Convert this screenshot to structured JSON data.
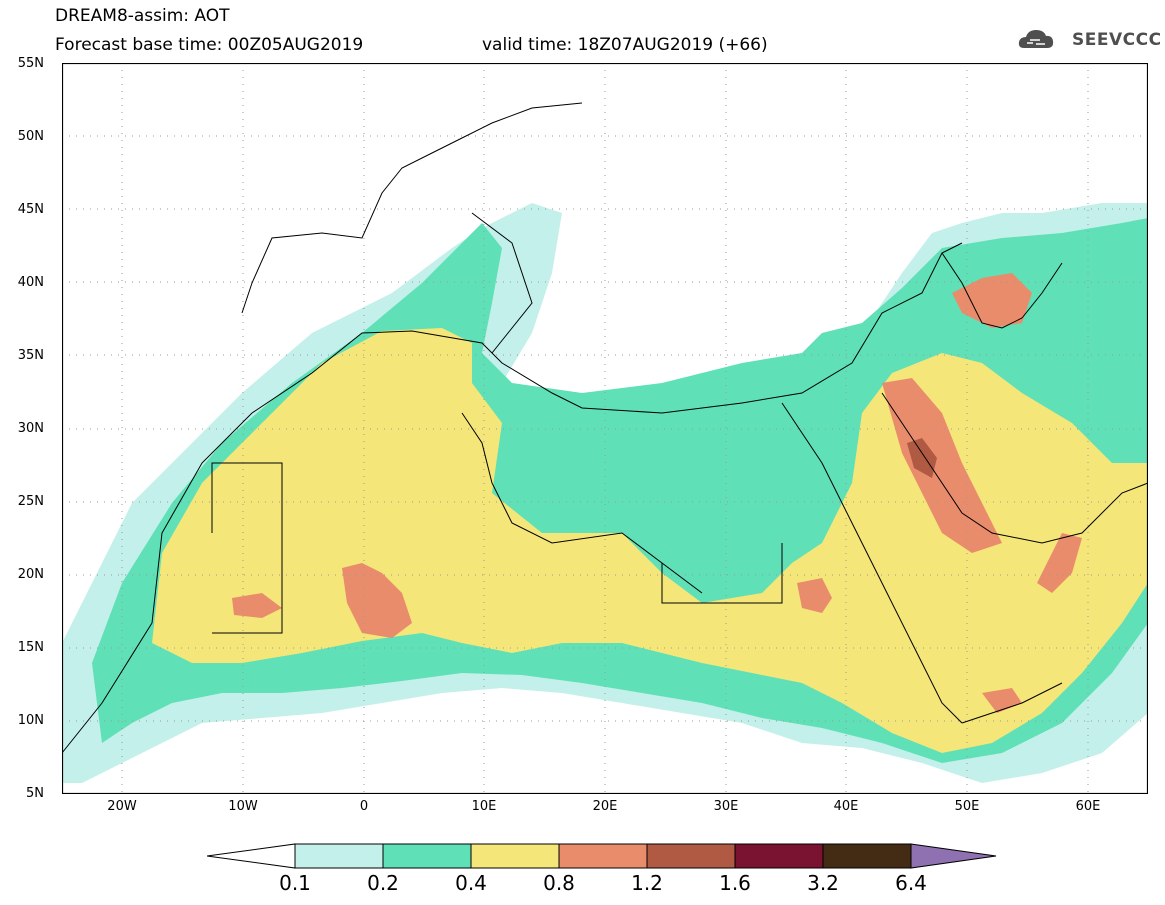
{
  "header": {
    "title_line1": "DREAM8-assim: AOT",
    "title_line2_left": "Forecast base time: 00Z05AUG2019",
    "title_line2_right": "valid time: 18Z07AUG2019 (+66)",
    "logo_text": "SEEVCCC",
    "logo_icon": "cloud-icon"
  },
  "map": {
    "extent": {
      "lon_min": -25,
      "lon_max": 65,
      "lat_min": 5,
      "lat_max": 55
    },
    "lat_ticks": [
      "55N",
      "50N",
      "45N",
      "40N",
      "35N",
      "30N",
      "25N",
      "20N",
      "15N",
      "10N",
      "5N"
    ],
    "lon_ticks": [
      "20W",
      "10W",
      "0",
      "10E",
      "20E",
      "30E",
      "40E",
      "50E",
      "60E"
    ],
    "gridlines": true,
    "ocean_color": "#ffffff"
  },
  "colorbar": {
    "labels": [
      "0.1",
      "0.2",
      "0.4",
      "0.8",
      "1.2",
      "1.6",
      "3.2",
      "6.4"
    ],
    "colors": [
      "#c3f0ea",
      "#5fe0b7",
      "#f5e67a",
      "#e98c6c",
      "#b05a44",
      "#7a1232",
      "#432b14",
      "#8f70b0"
    ],
    "extend": "both"
  }
}
